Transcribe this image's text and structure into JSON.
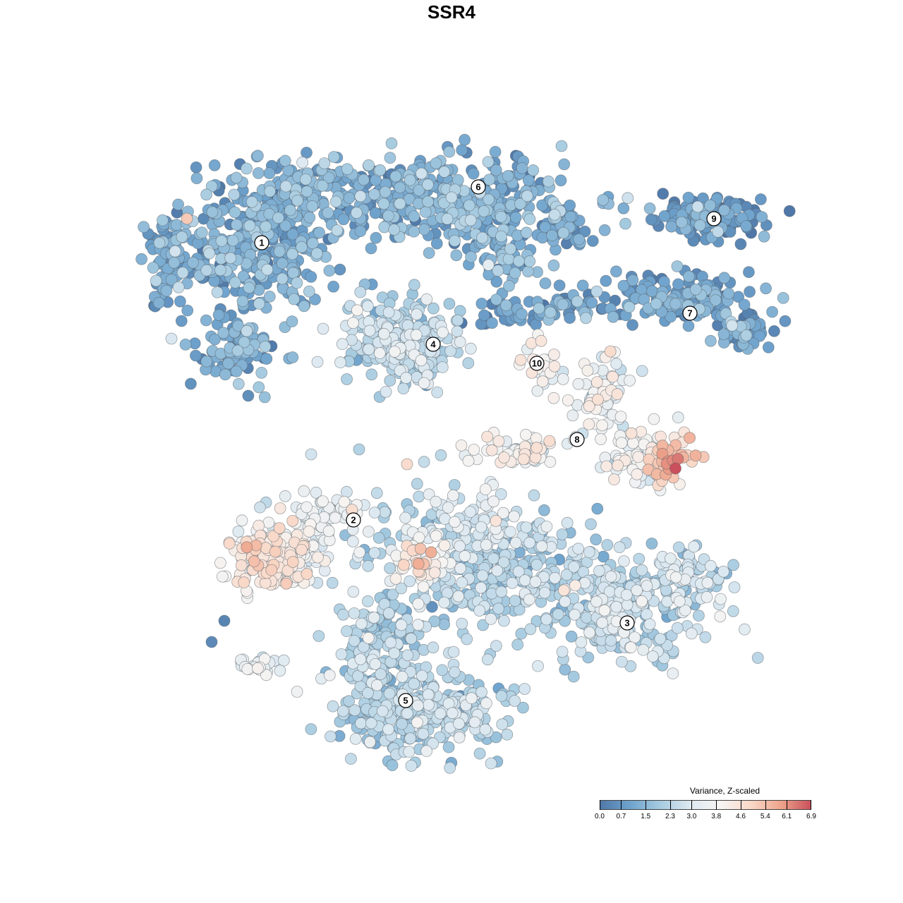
{
  "chart_data": {
    "type": "scatter",
    "title": "SSR4",
    "colorbar": {
      "title": "Variance, Z-scaled",
      "ticks": [
        "0.0",
        "0.7",
        "1.5",
        "2.3",
        "3.0",
        "3.8",
        "4.6",
        "5.4",
        "6.1",
        "6.9"
      ],
      "min": 0.0,
      "max": 6.9,
      "colors": [
        "#4f78a8",
        "#6fa3cd",
        "#a6cbe0",
        "#dde9f1",
        "#f6f4f2",
        "#f9d8c8",
        "#eea58c",
        "#c9505c"
      ]
    },
    "clusters": [
      {
        "label": "1",
        "level": 1.2
      },
      {
        "label": "2",
        "level": 3.4
      },
      {
        "label": "3",
        "level": 2.5
      },
      {
        "label": "4",
        "level": 2.4
      },
      {
        "label": "5",
        "level": 2.2
      },
      {
        "label": "6",
        "level": 1.3
      },
      {
        "label": "7",
        "level": 0.9
      },
      {
        "label": "8",
        "level": 3.6
      },
      {
        "label": "9",
        "level": 0.7
      },
      {
        "label": "10",
        "level": 3.6
      }
    ],
    "grid": false,
    "legend_position": "bottom-right"
  }
}
